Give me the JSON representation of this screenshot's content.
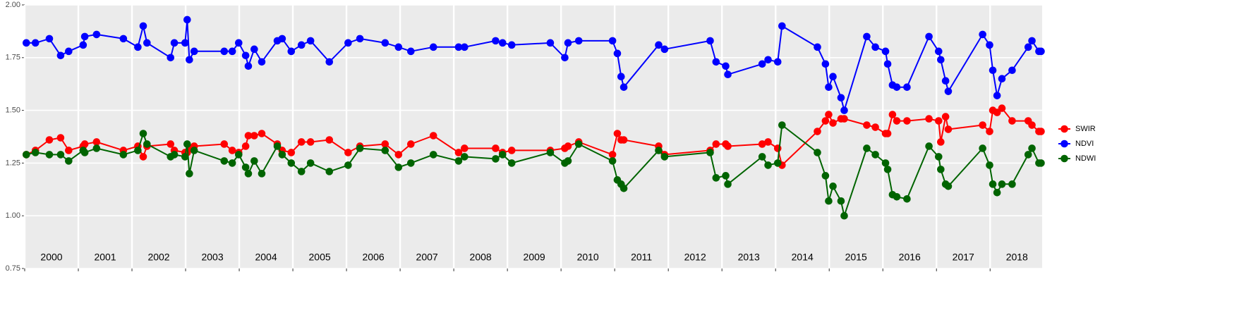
{
  "chart_data": {
    "type": "line",
    "x": [
      2000.03,
      2000.2,
      2000.46,
      2000.67,
      2000.82,
      2001.09,
      2001.12,
      2001.34,
      2001.84,
      2002.11,
      2002.21,
      2002.28,
      2002.72,
      2002.79,
      2002.99,
      2003.03,
      2003.07,
      2003.16,
      2003.72,
      2003.87,
      2003.99,
      2004.12,
      2004.17,
      2004.28,
      2004.42,
      2004.71,
      2004.8,
      2004.97,
      2005.16,
      2005.33,
      2005.68,
      2006.03,
      2006.25,
      2006.72,
      2006.97,
      2007.2,
      2007.62,
      2008.09,
      2008.2,
      2008.78,
      2008.91,
      2009.08,
      2009.8,
      2010.07,
      2010.13,
      2010.33,
      2010.96,
      2011.05,
      2011.12,
      2011.17,
      2011.82,
      2011.93,
      2012.78,
      2012.89,
      2013.07,
      2013.11,
      2013.75,
      2013.86,
      2014.04,
      2014.12,
      2014.78,
      2014.93,
      2014.99,
      2015.07,
      2015.22,
      2015.28,
      2015.7,
      2015.86,
      2016.05,
      2016.09,
      2016.18,
      2016.26,
      2016.45,
      2016.86,
      2017.04,
      2017.08,
      2017.17,
      2017.22,
      2017.86,
      2017.99,
      2018.05,
      2018.13,
      2018.22,
      2018.41,
      2018.71,
      2018.78,
      2018.91,
      2018.95
    ],
    "series": [
      {
        "name": "SWIR",
        "color": "#ff0000",
        "values": [
          1.29,
          1.31,
          1.36,
          1.37,
          1.31,
          1.33,
          1.34,
          1.35,
          1.31,
          1.33,
          1.28,
          1.33,
          1.34,
          1.31,
          1.3,
          1.3,
          1.32,
          1.33,
          1.34,
          1.31,
          1.3,
          1.33,
          1.38,
          1.38,
          1.39,
          1.34,
          1.31,
          1.3,
          1.35,
          1.35,
          1.36,
          1.3,
          1.33,
          1.34,
          1.29,
          1.34,
          1.38,
          1.3,
          1.32,
          1.32,
          1.3,
          1.31,
          1.31,
          1.32,
          1.33,
          1.35,
          1.29,
          1.39,
          1.36,
          1.36,
          1.33,
          1.29,
          1.31,
          1.34,
          1.34,
          1.33,
          1.34,
          1.35,
          1.32,
          1.24,
          1.4,
          1.45,
          1.48,
          1.44,
          1.46,
          1.46,
          1.43,
          1.42,
          1.39,
          1.39,
          1.48,
          1.45,
          1.45,
          1.46,
          1.45,
          1.35,
          1.47,
          1.41,
          1.43,
          1.4,
          1.5,
          1.49,
          1.51,
          1.45,
          1.45,
          1.43,
          1.4,
          1.4
        ]
      },
      {
        "name": "NDVI",
        "color": "#0000ff",
        "values": [
          1.82,
          1.82,
          1.84,
          1.76,
          1.78,
          1.81,
          1.85,
          1.86,
          1.84,
          1.8,
          1.9,
          1.82,
          1.75,
          1.82,
          1.82,
          1.93,
          1.74,
          1.78,
          1.78,
          1.78,
          1.82,
          1.76,
          1.71,
          1.79,
          1.73,
          1.83,
          1.84,
          1.78,
          1.81,
          1.83,
          1.73,
          1.82,
          1.84,
          1.82,
          1.8,
          1.78,
          1.8,
          1.8,
          1.8,
          1.83,
          1.82,
          1.81,
          1.82,
          1.75,
          1.82,
          1.83,
          1.83,
          1.77,
          1.66,
          1.61,
          1.81,
          1.79,
          1.83,
          1.73,
          1.71,
          1.67,
          1.72,
          1.74,
          1.73,
          1.9,
          1.8,
          1.72,
          1.61,
          1.66,
          1.56,
          1.5,
          1.85,
          1.8,
          1.78,
          1.72,
          1.62,
          1.61,
          1.61,
          1.85,
          1.78,
          1.74,
          1.64,
          1.59,
          1.86,
          1.81,
          1.69,
          1.57,
          1.65,
          1.69,
          1.8,
          1.83,
          1.78,
          1.78
        ]
      },
      {
        "name": "NDWI",
        "color": "#006400",
        "values": [
          1.29,
          1.3,
          1.29,
          1.29,
          1.26,
          1.31,
          1.3,
          1.32,
          1.29,
          1.31,
          1.39,
          1.34,
          1.28,
          1.29,
          1.28,
          1.34,
          1.2,
          1.31,
          1.26,
          1.25,
          1.29,
          1.23,
          1.2,
          1.26,
          1.2,
          1.33,
          1.29,
          1.25,
          1.21,
          1.25,
          1.21,
          1.24,
          1.32,
          1.31,
          1.23,
          1.25,
          1.29,
          1.26,
          1.28,
          1.27,
          1.29,
          1.25,
          1.3,
          1.25,
          1.26,
          1.34,
          1.26,
          1.17,
          1.15,
          1.13,
          1.31,
          1.28,
          1.3,
          1.18,
          1.19,
          1.15,
          1.28,
          1.24,
          1.25,
          1.43,
          1.3,
          1.19,
          1.07,
          1.14,
          1.07,
          1.0,
          1.32,
          1.29,
          1.25,
          1.22,
          1.1,
          1.09,
          1.08,
          1.33,
          1.28,
          1.22,
          1.15,
          1.14,
          1.32,
          1.24,
          1.15,
          1.11,
          1.15,
          1.15,
          1.29,
          1.32,
          1.25,
          1.25
        ]
      }
    ],
    "xlim": [
      2000,
      2018.97
    ],
    "xticks": [
      2000,
      2001,
      2002,
      2003,
      2004,
      2005,
      2006,
      2007,
      2008,
      2009,
      2010,
      2011,
      2012,
      2013,
      2014,
      2015,
      2016,
      2017,
      2018
    ],
    "ylim": [
      0.75,
      2.0
    ],
    "yticks": [
      {
        "value": 0.75,
        "label": "0.75"
      },
      {
        "value": 1.0,
        "label": "1.00"
      },
      {
        "value": 1.25,
        "label": "1.25"
      },
      {
        "value": 1.5,
        "label": "1.50"
      },
      {
        "value": 1.75,
        "label": "1.75"
      },
      {
        "value": 2.0,
        "label": "2.00"
      }
    ],
    "grid": true,
    "legend": "right"
  }
}
